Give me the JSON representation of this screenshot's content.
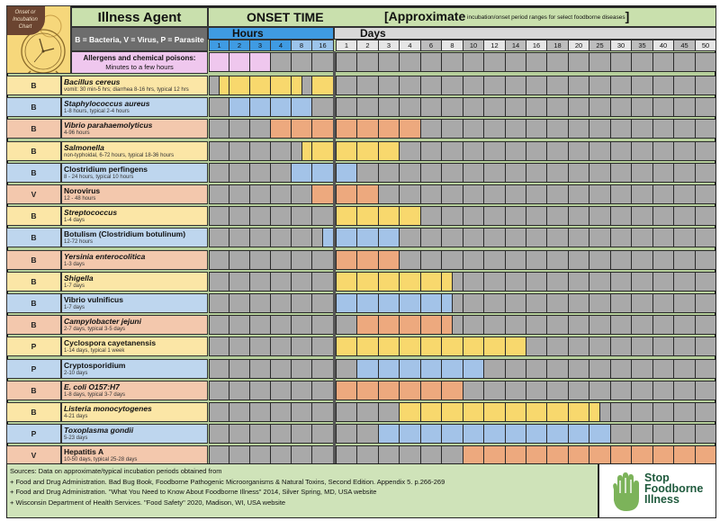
{
  "header": {
    "clock_tag": "Onset or Incubation Chart",
    "agent_title": "Illness Agent",
    "legend": "B = Bacteria, V = Virus, P = Parasite",
    "allergen_title": "Allergens and chemical poisons:",
    "allergen_sub": "Minutes to a few hours",
    "onset_title": "ONSET TIME",
    "approx_big": "[Approximate",
    "approx_small": " incubation/onset period ranges for select foodborne diseases",
    "approx_close": "]",
    "hours_label": "Hours",
    "days_label": "Days",
    "hour_ticks": [
      "1",
      "2",
      "3",
      "4",
      "8",
      "16"
    ],
    "day_ticks": [
      "1",
      "2",
      "3",
      "4",
      "6",
      "8",
      "10",
      "12",
      "14",
      "16",
      "18",
      "20",
      "25",
      "30",
      "35",
      "40",
      "45",
      "50"
    ]
  },
  "colors": {
    "yellow": "#f8d86d",
    "blue": "#a3c3e8",
    "orange": "#eda97e",
    "pink": "#efc7ee",
    "gray": "#a9a9a9",
    "row_yellow": "#fbe6a6",
    "row_blue": "#bed6ee",
    "row_orange": "#f3c8ad",
    "logo_green": "#7cb35a",
    "logo_text": "#1f5a3d"
  },
  "rows": [
    {
      "type": "B",
      "name": "Bacillus cereus",
      "italic": true,
      "detail": "vomit: 30 min-5 hrs; diarrhea 8-16 hrs, typical 12 hrs",
      "color": "yellow"
    },
    {
      "type": "B",
      "name": "Staphylococcus aureus",
      "italic": true,
      "detail": "1-8 hours, typical 2-4 hours",
      "color": "blue"
    },
    {
      "type": "B",
      "name": "Vibrio parahaemolyticus",
      "italic": true,
      "detail": "4-96 hours",
      "color": "orange"
    },
    {
      "type": "B",
      "name": "Salmonella",
      "italic": true,
      "detail": "non-typhoidal, 6-72 hours, typical 18-36 hours",
      "color": "yellow"
    },
    {
      "type": "B",
      "name": "Clostridium perfingens",
      "italic": false,
      "detail": "8 - 24 hours, typical 10 hours",
      "color": "blue"
    },
    {
      "type": "V",
      "name": "Norovirus",
      "italic": false,
      "detail": "12 - 48 hours",
      "color": "orange"
    },
    {
      "type": "B",
      "name": "Streptococcus",
      "italic": true,
      "detail": "1-4 days",
      "color": "yellow"
    },
    {
      "type": "B",
      "name": "Botulism (Clostridium botulinum)",
      "italic": false,
      "detail": "12-72 hours",
      "color": "blue"
    },
    {
      "type": "B",
      "name": "Yersinia enterocolitica",
      "italic": true,
      "detail": "1-3 days",
      "color": "orange"
    },
    {
      "type": "B",
      "name": "Shigella",
      "italic": true,
      "detail": "1-7 days",
      "color": "yellow"
    },
    {
      "type": "B",
      "name": "Vibrio vulnificus",
      "italic": false,
      "detail": "1-7 days",
      "color": "blue"
    },
    {
      "type": "B",
      "name": "Campylobacter jejuni",
      "italic": true,
      "detail": "2-7 days, typical 3-5 days",
      "color": "orange"
    },
    {
      "type": "P",
      "name": "Cyclospora cayetanensis",
      "italic": false,
      "detail": "1-14 days, typical 1 week",
      "color": "yellow"
    },
    {
      "type": "P",
      "name": "Cryptosporidium",
      "italic": false,
      "detail": "2-10 days",
      "color": "blue"
    },
    {
      "type": "B",
      "name": "E. coli O157:H7",
      "italic": true,
      "detail": "1-8 days, typical 3-7 days",
      "color": "orange"
    },
    {
      "type": "B",
      "name": "Listeria monocytogenes",
      "italic": true,
      "detail": "4-21 days",
      "color": "yellow"
    },
    {
      "type": "P",
      "name": "Toxoplasma gondii",
      "italic": true,
      "detail": "5-23 days",
      "color": "blue"
    },
    {
      "type": "V",
      "name": "Hepatitis A",
      "italic": false,
      "detail": "10-50 days, typical 25-28 days",
      "color": "orange"
    }
  ],
  "footer": {
    "lines": [
      "Sources: Data on approximate/typical incubation periods obtained from",
      "+ Food and Drug Administration. Bad Bug Book, Foodborne Pathogenic Microorganisms & Natural Toxins, Second Edition. Appendix 5. p.266-269",
      "+ Food and Drug Administration. \"What You Need to Know About Foodborne Illness\" 2014, Silver Spring, MD, USA website",
      "+ Wisconsin Department of Health Services. \"Food Safety\" 2020, Madison, WI, USA website"
    ],
    "logo_lines": [
      "Stop",
      "Foodborne",
      "Illness"
    ]
  },
  "chart_data": {
    "type": "table",
    "title": "Onset or Incubation Chart — ONSET TIME [Approximate incubation/onset period ranges for select foodborne diseases]",
    "xlabel": "Onset time (Hours: 1,2,3,4,8,16 | Days: 1-50)",
    "columns": [
      "h1",
      "h2",
      "h3",
      "h4",
      "h8",
      "h16",
      "d1",
      "d2",
      "d3",
      "d4",
      "d6",
      "d8",
      "d10",
      "d12",
      "d14",
      "d16",
      "d18",
      "d20",
      "d25",
      "d30",
      "d35",
      "d40",
      "d45",
      "d50"
    ],
    "allergens": {
      "label": "Allergens and chemical poisons",
      "range": "Minutes to a few hours",
      "span_cols": [
        0,
        3
      ]
    },
    "series": [
      {
        "name": "Bacillus cereus",
        "range": "vomit 30 min-5 hrs; diarrhea 8-16 hrs",
        "span_cols": [
          [
            0.5,
            4.5
          ],
          [
            5,
            6
          ]
        ]
      },
      {
        "name": "Staphylococcus aureus",
        "range": "1-8 hours",
        "span_cols": [
          [
            1,
            5
          ]
        ]
      },
      {
        "name": "Vibrio parahaemolyticus",
        "range": "4-96 hours",
        "span_cols": [
          [
            3,
            10
          ]
        ]
      },
      {
        "name": "Salmonella",
        "range": "6-72 hours",
        "span_cols": [
          [
            4.5,
            9
          ]
        ]
      },
      {
        "name": "Clostridium perfingens",
        "range": "8-24 hours",
        "span_cols": [
          [
            4,
            7
          ]
        ]
      },
      {
        "name": "Norovirus",
        "range": "12-48 hours",
        "span_cols": [
          [
            5,
            8
          ]
        ]
      },
      {
        "name": "Streptococcus",
        "range": "1-4 days",
        "span_cols": [
          [
            6,
            10
          ]
        ]
      },
      {
        "name": "Botulism (Clostridium botulinum)",
        "range": "12-72 hours",
        "span_cols": [
          [
            5.5,
            9
          ]
        ]
      },
      {
        "name": "Yersinia enterocolitica",
        "range": "1-3 days",
        "span_cols": [
          [
            6,
            9
          ]
        ]
      },
      {
        "name": "Shigella",
        "range": "1-7 days",
        "span_cols": [
          [
            6,
            11.5
          ]
        ]
      },
      {
        "name": "Vibrio vulnificus",
        "range": "1-7 days",
        "span_cols": [
          [
            6,
            11.5
          ]
        ]
      },
      {
        "name": "Campylobacter jejuni",
        "range": "2-7 days",
        "span_cols": [
          [
            7,
            11.5
          ]
        ]
      },
      {
        "name": "Cyclospora cayetanensis",
        "range": "1-14 days",
        "span_cols": [
          [
            6,
            15
          ]
        ]
      },
      {
        "name": "Cryptosporidium",
        "range": "2-10 days",
        "span_cols": [
          [
            7,
            13
          ]
        ]
      },
      {
        "name": "E. coli O157:H7",
        "range": "1-8 days",
        "span_cols": [
          [
            6,
            12
          ]
        ]
      },
      {
        "name": "Listeria monocytogenes",
        "range": "4-21 days",
        "span_cols": [
          [
            9,
            18.5
          ]
        ]
      },
      {
        "name": "Toxoplasma gondii",
        "range": "5-23 days",
        "span_cols": [
          [
            8,
            19
          ]
        ]
      },
      {
        "name": "Hepatitis A",
        "range": "10-50 days",
        "span_cols": [
          [
            12,
            24
          ]
        ]
      }
    ]
  }
}
